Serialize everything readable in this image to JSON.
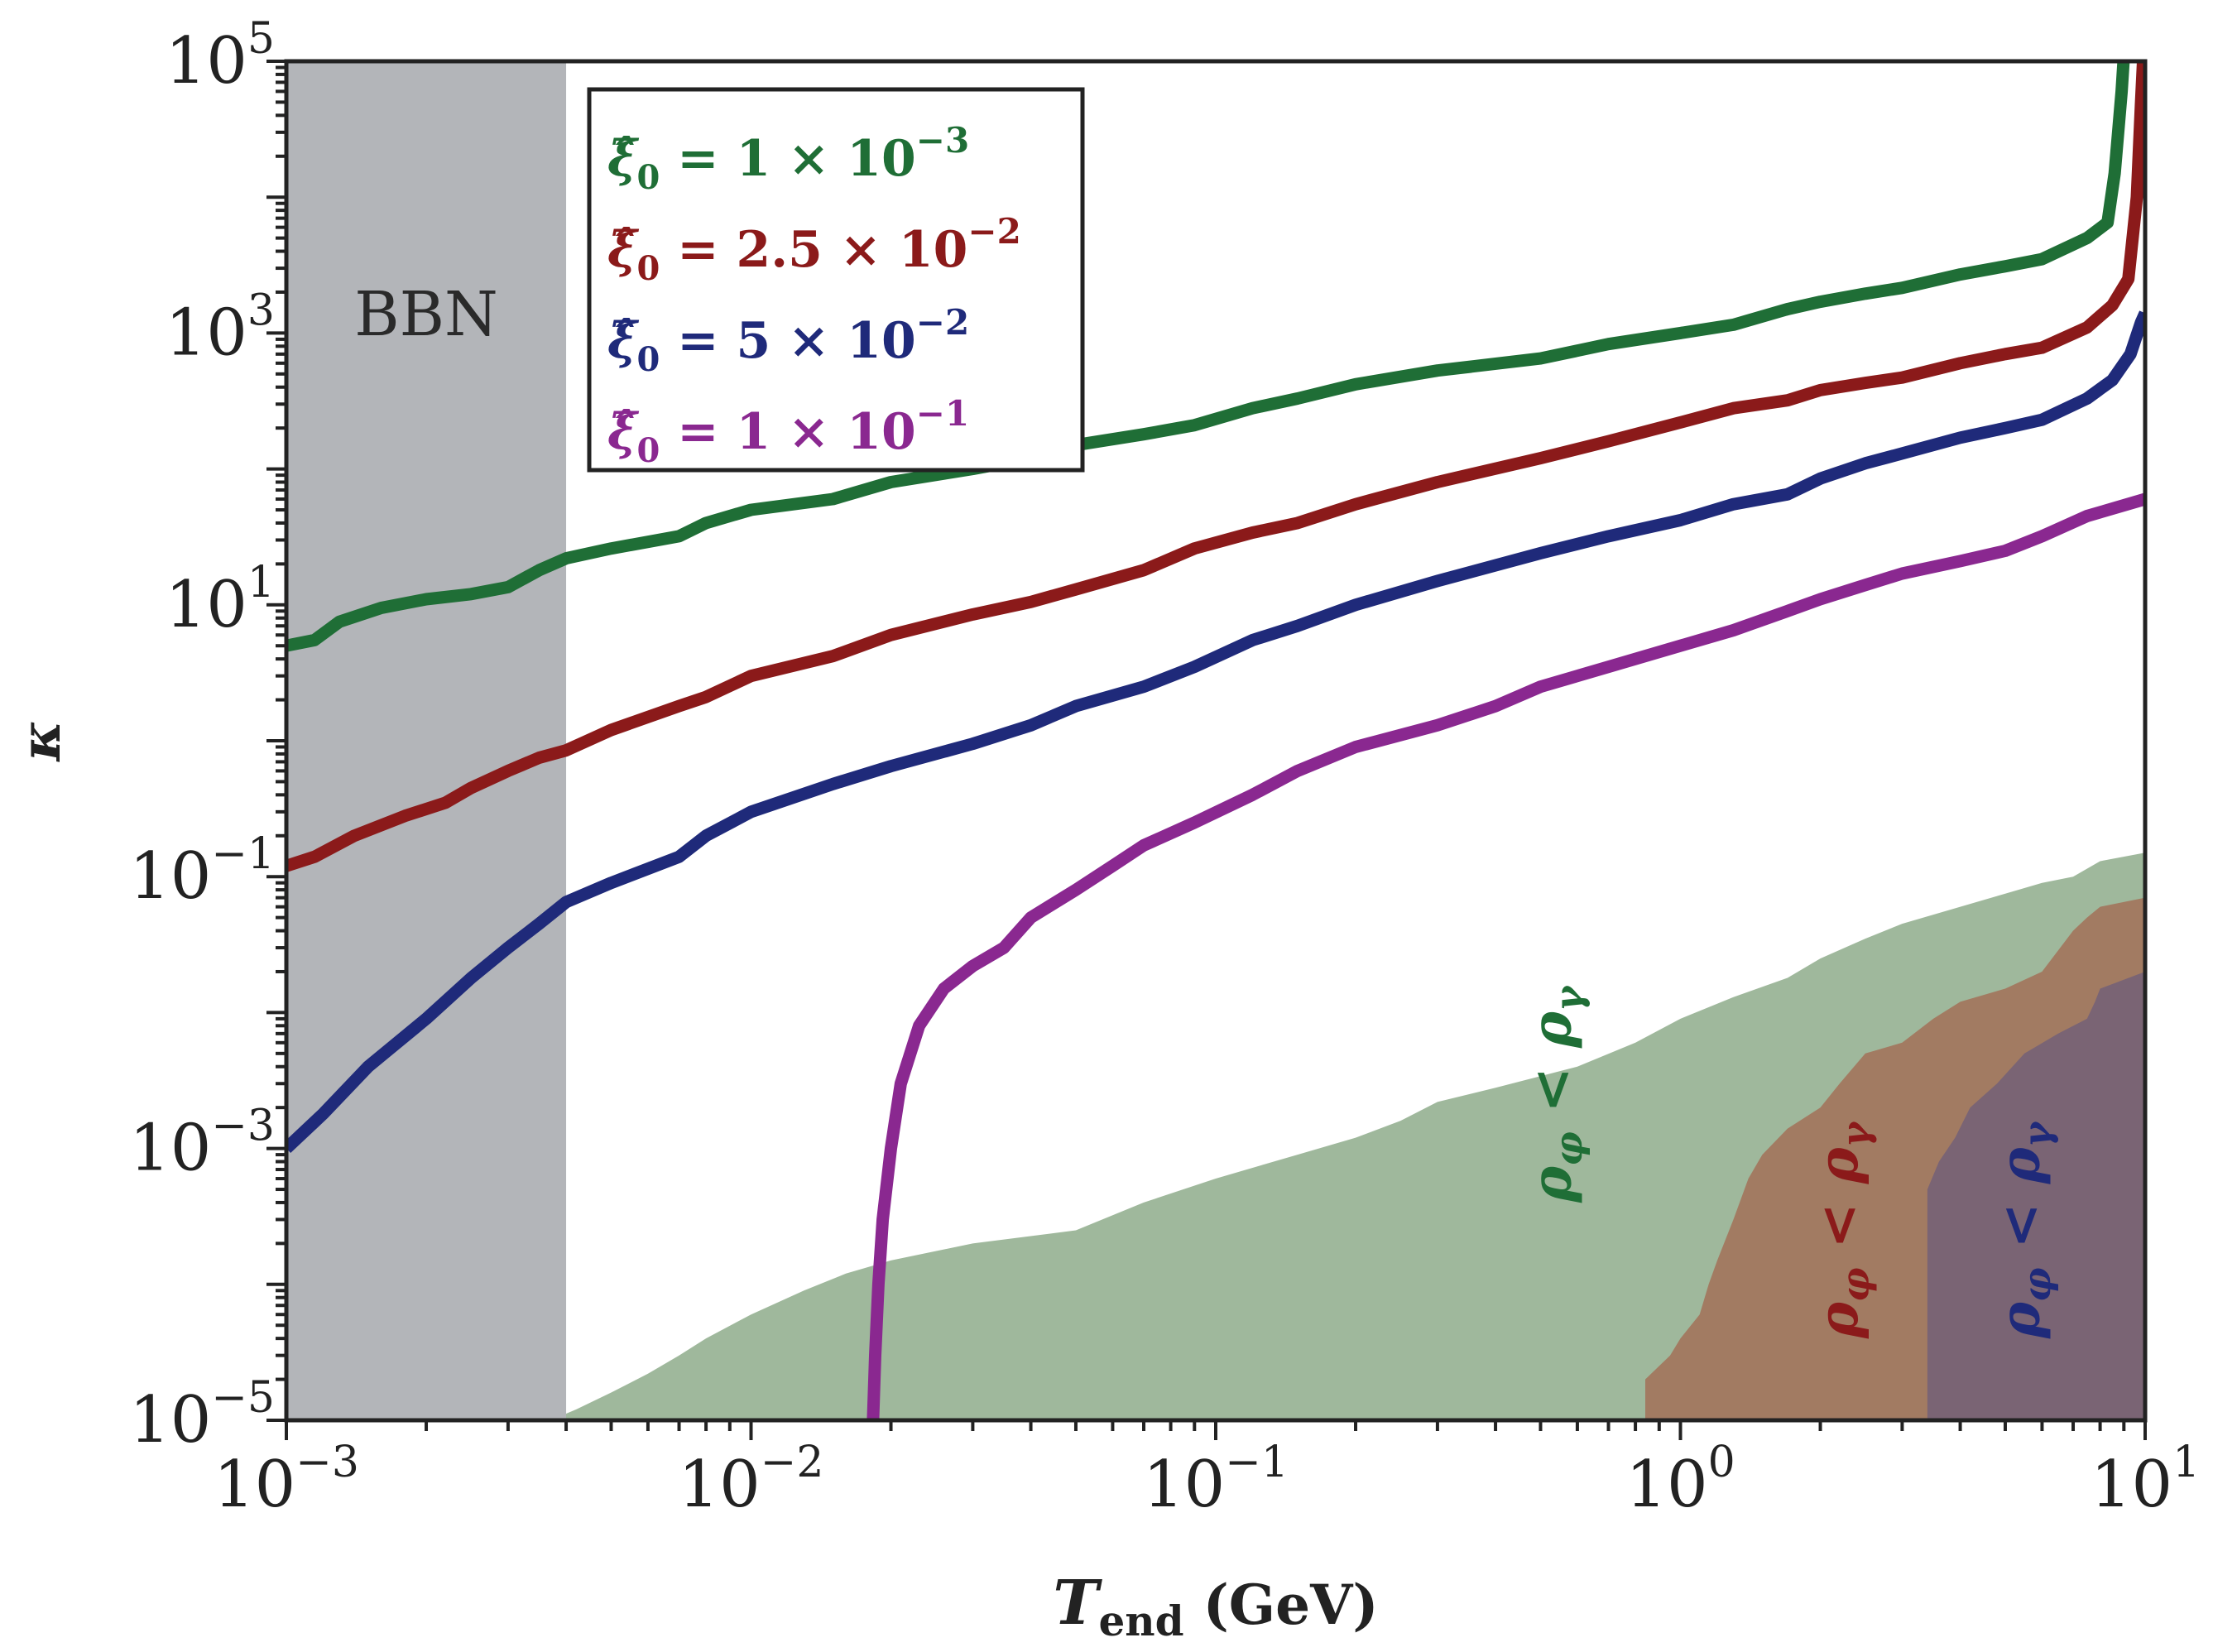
{
  "chart_data": {
    "type": "line",
    "title": "",
    "xlabel": "T_end (GeV)",
    "ylabel": "κ",
    "xscale": "log",
    "yscale": "log",
    "xlim": [
      0.001,
      10
    ],
    "ylim": [
      1e-05,
      100000
    ],
    "grid": false,
    "legend_position": "top-left",
    "x_ticks": [
      {
        "value": 0.001,
        "base": "10",
        "exp": "−3"
      },
      {
        "value": 0.01,
        "base": "10",
        "exp": "−2"
      },
      {
        "value": 0.1,
        "base": "10",
        "exp": "−1"
      },
      {
        "value": 1,
        "base": "10",
        "exp": "0"
      },
      {
        "value": 10,
        "base": "10",
        "exp": "1"
      }
    ],
    "y_ticks": [
      {
        "value": 1e-05,
        "base": "10",
        "exp": "−5"
      },
      {
        "value": 0.001,
        "base": "10",
        "exp": "−3"
      },
      {
        "value": 0.1,
        "base": "10",
        "exp": "−1"
      },
      {
        "value": 10,
        "base": "10",
        "exp": "1"
      },
      {
        "value": 1000,
        "base": "10",
        "exp": "3"
      },
      {
        "value": 100000,
        "base": "10",
        "exp": "5"
      }
    ],
    "x_label_parts": {
      "symbol": "T",
      "subscript": "end",
      "unit": " (GeV)"
    },
    "y_label_symbol": "κ",
    "bbn_region": {
      "label": "BBN",
      "x_range": [
        0.001,
        0.004
      ],
      "color": "#b3b5b9"
    },
    "series": [
      {
        "name": "ξ̂₀ = 1 × 10⁻³",
        "legend": {
          "value": "1",
          "exp": "−3"
        },
        "color": "#1f6e36",
        "points": [
          [
            0.001,
            5
          ],
          [
            0.00115,
            5.5
          ],
          [
            0.0013,
            7.5
          ],
          [
            0.0016,
            9.5
          ],
          [
            0.002,
            11
          ],
          [
            0.0025,
            12
          ],
          [
            0.003,
            13.5
          ],
          [
            0.0035,
            18
          ],
          [
            0.004,
            22
          ],
          [
            0.005,
            26
          ],
          [
            0.007,
            32
          ],
          [
            0.008,
            40
          ],
          [
            0.01,
            50
          ],
          [
            0.015,
            60
          ],
          [
            0.02,
            80
          ],
          [
            0.03,
            100
          ],
          [
            0.04,
            120
          ],
          [
            0.05,
            150
          ],
          [
            0.07,
            180
          ],
          [
            0.09,
            210
          ],
          [
            0.12,
            280
          ],
          [
            0.15,
            330
          ],
          [
            0.2,
            420
          ],
          [
            0.3,
            530
          ],
          [
            0.5,
            650
          ],
          [
            0.7,
            830
          ],
          [
            1.0,
            1000
          ],
          [
            1.3,
            1150
          ],
          [
            1.7,
            1500
          ],
          [
            2.0,
            1700
          ],
          [
            2.5,
            1950
          ],
          [
            3.0,
            2150
          ],
          [
            4.0,
            2700
          ],
          [
            5.0,
            3100
          ],
          [
            6.0,
            3500
          ],
          [
            7.5,
            5000
          ],
          [
            8.3,
            6500
          ],
          [
            8.6,
            15000
          ],
          [
            8.9,
            60000
          ],
          [
            9.1,
            200000
          ]
        ]
      },
      {
        "name": "ξ̂₀ = 2.5 × 10⁻²",
        "legend": {
          "value": "2.5",
          "exp": "−2"
        },
        "color": "#8b1a1a",
        "points": [
          [
            0.001,
            0.12
          ],
          [
            0.00115,
            0.14
          ],
          [
            0.0014,
            0.2
          ],
          [
            0.0018,
            0.28
          ],
          [
            0.0022,
            0.35
          ],
          [
            0.0025,
            0.45
          ],
          [
            0.003,
            0.6
          ],
          [
            0.0035,
            0.75
          ],
          [
            0.004,
            0.85
          ],
          [
            0.005,
            1.2
          ],
          [
            0.007,
            1.8
          ],
          [
            0.008,
            2.1
          ],
          [
            0.01,
            3.0
          ],
          [
            0.015,
            4.2
          ],
          [
            0.02,
            6.0
          ],
          [
            0.03,
            8.5
          ],
          [
            0.04,
            10.5
          ],
          [
            0.05,
            13
          ],
          [
            0.07,
            18
          ],
          [
            0.09,
            26
          ],
          [
            0.12,
            34
          ],
          [
            0.15,
            40
          ],
          [
            0.2,
            55
          ],
          [
            0.3,
            80
          ],
          [
            0.5,
            120
          ],
          [
            0.7,
            160
          ],
          [
            1.0,
            220
          ],
          [
            1.3,
            280
          ],
          [
            1.7,
            320
          ],
          [
            2.0,
            380
          ],
          [
            2.5,
            430
          ],
          [
            3.0,
            470
          ],
          [
            4.0,
            600
          ],
          [
            5.0,
            700
          ],
          [
            6.0,
            780
          ],
          [
            7.5,
            1100
          ],
          [
            8.5,
            1600
          ],
          [
            9.2,
            2500
          ],
          [
            9.6,
            10000
          ],
          [
            9.8,
            50000
          ],
          [
            9.9,
            100000
          ]
        ]
      },
      {
        "name": "ξ̂₀ = 5 × 10⁻²",
        "legend": {
          "value": "5",
          "exp": "−2"
        },
        "color": "#1f2a7a",
        "points": [
          [
            0.001,
            0.001
          ],
          [
            0.0012,
            0.0018
          ],
          [
            0.0015,
            0.004
          ],
          [
            0.002,
            0.009
          ],
          [
            0.0025,
            0.018
          ],
          [
            0.003,
            0.03
          ],
          [
            0.0035,
            0.045
          ],
          [
            0.004,
            0.065
          ],
          [
            0.005,
            0.09
          ],
          [
            0.007,
            0.14
          ],
          [
            0.008,
            0.2
          ],
          [
            0.01,
            0.3
          ],
          [
            0.015,
            0.48
          ],
          [
            0.02,
            0.65
          ],
          [
            0.03,
            0.95
          ],
          [
            0.04,
            1.3
          ],
          [
            0.05,
            1.8
          ],
          [
            0.07,
            2.5
          ],
          [
            0.09,
            3.5
          ],
          [
            0.12,
            5.5
          ],
          [
            0.15,
            7.0
          ],
          [
            0.2,
            10
          ],
          [
            0.3,
            15
          ],
          [
            0.5,
            24
          ],
          [
            0.7,
            32
          ],
          [
            1.0,
            42
          ],
          [
            1.3,
            55
          ],
          [
            1.7,
            65
          ],
          [
            2.0,
            85
          ],
          [
            2.5,
            110
          ],
          [
            3.0,
            130
          ],
          [
            4.0,
            170
          ],
          [
            5.0,
            200
          ],
          [
            6.0,
            230
          ],
          [
            7.5,
            330
          ],
          [
            8.5,
            450
          ],
          [
            9.3,
            700
          ],
          [
            9.8,
            1200
          ],
          [
            10,
            1400
          ]
        ]
      },
      {
        "name": "ξ̂₀ = 1 × 10⁻¹",
        "legend": {
          "value": "1",
          "exp": "−1"
        },
        "color": "#8a2890",
        "points": [
          [
            0.0183,
            1e-05
          ],
          [
            0.0185,
            3e-05
          ],
          [
            0.0188,
            0.0001
          ],
          [
            0.0192,
            0.0003
          ],
          [
            0.02,
            0.001
          ],
          [
            0.021,
            0.003
          ],
          [
            0.023,
            0.008
          ],
          [
            0.026,
            0.015
          ],
          [
            0.03,
            0.022
          ],
          [
            0.035,
            0.03
          ],
          [
            0.04,
            0.05
          ],
          [
            0.05,
            0.08
          ],
          [
            0.06,
            0.12
          ],
          [
            0.07,
            0.17
          ],
          [
            0.09,
            0.25
          ],
          [
            0.12,
            0.4
          ],
          [
            0.15,
            0.6
          ],
          [
            0.2,
            0.9
          ],
          [
            0.3,
            1.3
          ],
          [
            0.4,
            1.8
          ],
          [
            0.5,
            2.5
          ],
          [
            0.7,
            3.5
          ],
          [
            1.0,
            5.0
          ],
          [
            1.3,
            6.5
          ],
          [
            1.7,
            9.0
          ],
          [
            2.0,
            11
          ],
          [
            2.5,
            14
          ],
          [
            3.0,
            17
          ],
          [
            4.0,
            21
          ],
          [
            5.0,
            25
          ],
          [
            6.0,
            32
          ],
          [
            7.5,
            45
          ],
          [
            10,
            60
          ]
        ]
      }
    ],
    "shaded_regions": [
      {
        "name": "ρ_φ < ρ_γ (green)",
        "label_parts": {
          "left": "ρ",
          "left_sub": "φ",
          "op": " < ",
          "right": "ρ",
          "right_sub": "γ"
        },
        "label_x": 0.58,
        "label_y": 0.0025,
        "color": "#9fb89c",
        "boundary": [
          [
            0.0037,
            1e-05
          ],
          [
            0.0042,
            1.2e-05
          ],
          [
            0.005,
            1.6e-05
          ],
          [
            0.006,
            2.2e-05
          ],
          [
            0.007,
            3e-05
          ],
          [
            0.008,
            4e-05
          ],
          [
            0.01,
            6e-05
          ],
          [
            0.013,
            9e-05
          ],
          [
            0.016,
            0.00012
          ],
          [
            0.02,
            0.00015
          ],
          [
            0.03,
            0.0002
          ],
          [
            0.05,
            0.00025
          ],
          [
            0.07,
            0.0004
          ],
          [
            0.1,
            0.0006
          ],
          [
            0.15,
            0.0009
          ],
          [
            0.2,
            0.0012
          ],
          [
            0.25,
            0.0016
          ],
          [
            0.3,
            0.0022
          ],
          [
            0.4,
            0.0028
          ],
          [
            0.6,
            0.004
          ],
          [
            0.8,
            0.006
          ],
          [
            1.0,
            0.009
          ],
          [
            1.3,
            0.013
          ],
          [
            1.7,
            0.018
          ],
          [
            2.0,
            0.025
          ],
          [
            2.5,
            0.035
          ],
          [
            3.0,
            0.045
          ],
          [
            4.0,
            0.06
          ],
          [
            5.0,
            0.075
          ],
          [
            6.0,
            0.09
          ],
          [
            7.0,
            0.1
          ],
          [
            8.0,
            0.13
          ],
          [
            10,
            0.15
          ]
        ]
      },
      {
        "name": "ρ_φ < ρ_γ (red)",
        "label_parts": {
          "left": "ρ",
          "left_sub": "φ",
          "op": " < ",
          "right": "ρ",
          "right_sub": "γ"
        },
        "label_x": 2.4,
        "label_y": 0.00025,
        "color": "#a27b62",
        "boundary": [
          [
            0.84,
            1e-05
          ],
          [
            0.84,
            2e-05
          ],
          [
            0.95,
            3e-05
          ],
          [
            1.0,
            4e-05
          ],
          [
            1.1,
            6e-05
          ],
          [
            1.15,
            0.0001
          ],
          [
            1.2,
            0.00015
          ],
          [
            1.3,
            0.0003
          ],
          [
            1.4,
            0.0006
          ],
          [
            1.5,
            0.0009
          ],
          [
            1.7,
            0.0014
          ],
          [
            2.0,
            0.002
          ],
          [
            2.2,
            0.003
          ],
          [
            2.5,
            0.005
          ],
          [
            3.0,
            0.006
          ],
          [
            3.5,
            0.009
          ],
          [
            4.0,
            0.012
          ],
          [
            5.0,
            0.015
          ],
          [
            6.0,
            0.02
          ],
          [
            7.0,
            0.04
          ],
          [
            7.5,
            0.05
          ],
          [
            8.0,
            0.06
          ],
          [
            10,
            0.07
          ]
        ]
      },
      {
        "name": "ρ_φ < ρ_γ (blue)",
        "label_parts": {
          "left": "ρ",
          "left_sub": "φ",
          "op": " < ",
          "right": "ρ",
          "right_sub": "γ"
        },
        "label_x": 5.9,
        "label_y": 0.00025,
        "color": "#7a6474",
        "boundary": [
          [
            3.4,
            1e-05
          ],
          [
            3.4,
            0.0005
          ],
          [
            3.6,
            0.0008
          ],
          [
            3.9,
            0.0012
          ],
          [
            4.2,
            0.002
          ],
          [
            4.8,
            0.003
          ],
          [
            5.5,
            0.005
          ],
          [
            6.5,
            0.007
          ],
          [
            7.5,
            0.009
          ],
          [
            7.8,
            0.012
          ],
          [
            8.0,
            0.015
          ],
          [
            10,
            0.02
          ]
        ]
      }
    ]
  }
}
